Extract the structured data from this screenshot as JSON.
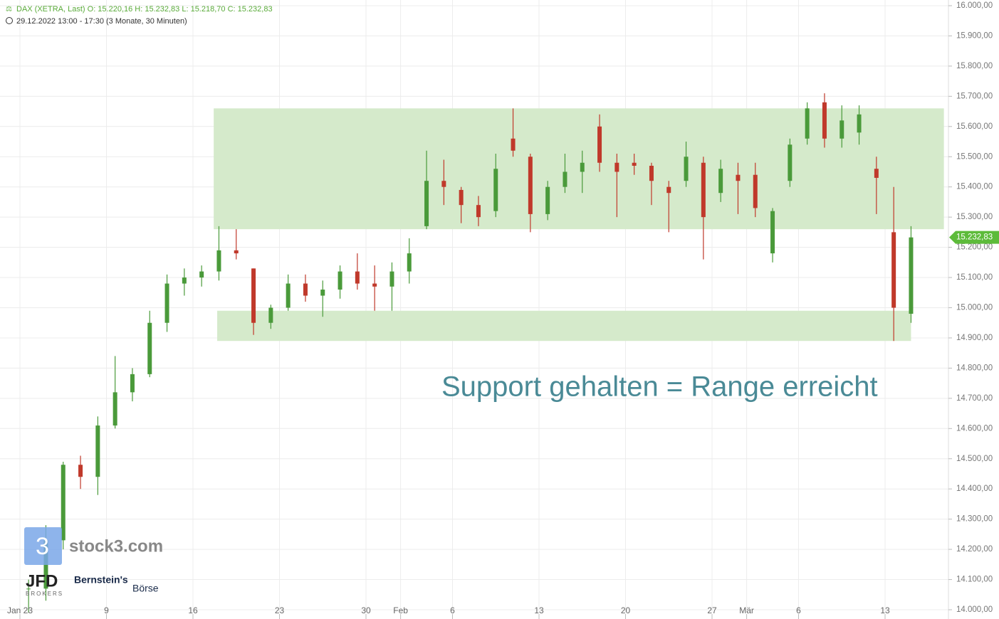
{
  "chart_data": {
    "type": "candlestick",
    "header": "DAX (XETRA, Last)  O: 15.220,16  H: 15.232,83  L: 15.218,70  C: 15.232,83",
    "subheader": "29.12.2022 13:00 - 17:30   (3 Monate, 30 Minuten)",
    "annotation": "Support gehalten = Range erreicht",
    "last_price": 15232.83,
    "last_price_label": "15.232,83",
    "up_color": "#4a9a3a",
    "down_color": "#c0392b",
    "zone_color": "#d5eacb",
    "zones": [
      {
        "from": 15260,
        "to": 15660,
        "xrange": [
          11.2,
          53.4
        ]
      },
      {
        "from": 14890,
        "to": 14990,
        "xrange": [
          11.4,
          51.5
        ]
      }
    ],
    "ylim": [
      14000,
      16000
    ],
    "yticks": [
      {
        "value": 14000,
        "label": "14.000,00"
      },
      {
        "value": 14100,
        "label": "14.100,00"
      },
      {
        "value": 14200,
        "label": "14.200,00"
      },
      {
        "value": 14300,
        "label": "14.300,00"
      },
      {
        "value": 14400,
        "label": "14.400,00"
      },
      {
        "value": 14500,
        "label": "14.500,00"
      },
      {
        "value": 14600,
        "label": "14.600,00"
      },
      {
        "value": 14700,
        "label": "14.700,00"
      },
      {
        "value": 14800,
        "label": "14.800,00"
      },
      {
        "value": 14900,
        "label": "14.900,00"
      },
      {
        "value": 15000,
        "label": "15.000,00"
      },
      {
        "value": 15100,
        "label": "15.100,00"
      },
      {
        "value": 15200,
        "label": "15.200,00"
      },
      {
        "value": 15300,
        "label": "15.300,00"
      },
      {
        "value": 15400,
        "label": "15.400,00"
      },
      {
        "value": 15500,
        "label": "15.500,00"
      },
      {
        "value": 15600,
        "label": "15.600,00"
      },
      {
        "value": 15700,
        "label": "15.700,00"
      },
      {
        "value": 15800,
        "label": "15.800,00"
      },
      {
        "value": 15900,
        "label": "15.900,00"
      },
      {
        "value": 16000,
        "label": "16.000,00"
      }
    ],
    "xticks": [
      {
        "value": 0,
        "label": "Jan 23"
      },
      {
        "value": 5,
        "label": "9"
      },
      {
        "value": 10,
        "label": "16"
      },
      {
        "value": 15,
        "label": "23"
      },
      {
        "value": 20,
        "label": "30"
      },
      {
        "value": 22,
        "label": "Feb"
      },
      {
        "value": 25,
        "label": "6"
      },
      {
        "value": 30,
        "label": "13"
      },
      {
        "value": 35,
        "label": "20"
      },
      {
        "value": 40,
        "label": "27"
      },
      {
        "value": 42,
        "label": "Mär"
      },
      {
        "value": 45,
        "label": "6"
      },
      {
        "value": 50,
        "label": "13"
      }
    ],
    "open": [
      14070,
      14070,
      14230,
      14480,
      14440,
      14610,
      14720,
      14780,
      14950,
      15080,
      15100,
      15120,
      15190,
      15130,
      14950,
      15000,
      15080,
      15040,
      15060,
      15120,
      15080,
      15070,
      15120,
      15270,
      15420,
      15390,
      15340,
      15320,
      15560,
      15500,
      15310,
      15400,
      15450,
      15600,
      15480,
      15480,
      15470,
      15400,
      15420,
      15480,
      15380,
      15440,
      15440,
      15180,
      15420,
      15560,
      15680,
      15560,
      15580,
      15460,
      15250,
      14980
    ],
    "high": [
      14100,
      14280,
      14490,
      14510,
      14640,
      14840,
      14800,
      14990,
      15110,
      15130,
      15140,
      15270,
      15260,
      15130,
      15010,
      15110,
      15110,
      15090,
      15140,
      15180,
      15140,
      15150,
      15230,
      15520,
      15490,
      15400,
      15370,
      15510,
      15660,
      15510,
      15420,
      15510,
      15520,
      15640,
      15510,
      15510,
      15480,
      15420,
      15550,
      15500,
      15490,
      15480,
      15480,
      15330,
      15560,
      15680,
      15710,
      15670,
      15670,
      15500,
      15400,
      15270
    ],
    "low": [
      13990,
      14030,
      14200,
      14400,
      14380,
      14600,
      14690,
      14770,
      14920,
      15040,
      15070,
      15090,
      15160,
      14910,
      14930,
      14990,
      15020,
      14970,
      15030,
      15060,
      14990,
      14990,
      15080,
      15260,
      15340,
      15280,
      15270,
      15300,
      15500,
      15250,
      15290,
      15380,
      15380,
      15450,
      15300,
      15440,
      15340,
      15250,
      15400,
      15160,
      15350,
      15310,
      15300,
      15150,
      15400,
      15540,
      15530,
      15530,
      15540,
      15310,
      14890,
      14950
    ],
    "close": [
      14070,
      14230,
      14480,
      14440,
      14610,
      14720,
      14780,
      14950,
      15080,
      15100,
      15120,
      15190,
      15180,
      14950,
      15000,
      15080,
      15040,
      15060,
      15120,
      15080,
      15070,
      15120,
      15180,
      15420,
      15400,
      15340,
      15300,
      15460,
      15520,
      15310,
      15400,
      15450,
      15480,
      15480,
      15450,
      15470,
      15420,
      15380,
      15500,
      15300,
      15460,
      15420,
      15330,
      15320,
      15540,
      15660,
      15560,
      15620,
      15640,
      15430,
      15000,
      15232.83
    ],
    "logos": {
      "stock3": "stock3.com",
      "jfd": "JFD",
      "jfd_sub": "BROKERS",
      "bern": "Bernstein's",
      "boerse": "Börse"
    }
  }
}
